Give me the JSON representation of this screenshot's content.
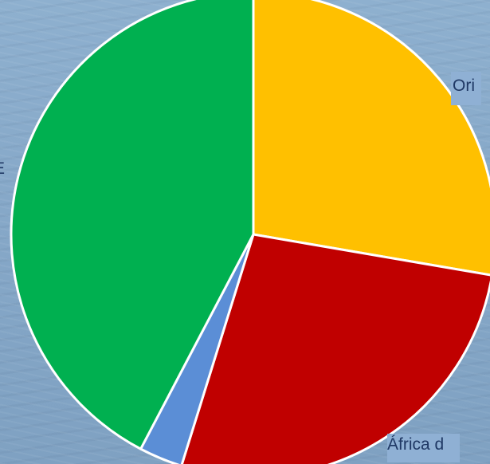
{
  "chart_data": {
    "type": "pie",
    "title": "",
    "start_angle_deg": 0,
    "direction": "clockwise",
    "slices": [
      {
        "label": "Ori",
        "value": 27.7,
        "color": "#ffc000"
      },
      {
        "label": "África d",
        "value": 27.1,
        "color": "#c00000"
      },
      {
        "label": "",
        "value": 2.9,
        "color": "#5b8ed6"
      },
      {
        "label": "E",
        "value": 42.3,
        "color": "#00b050"
      }
    ],
    "slice_border_color": "#ffffff"
  }
}
